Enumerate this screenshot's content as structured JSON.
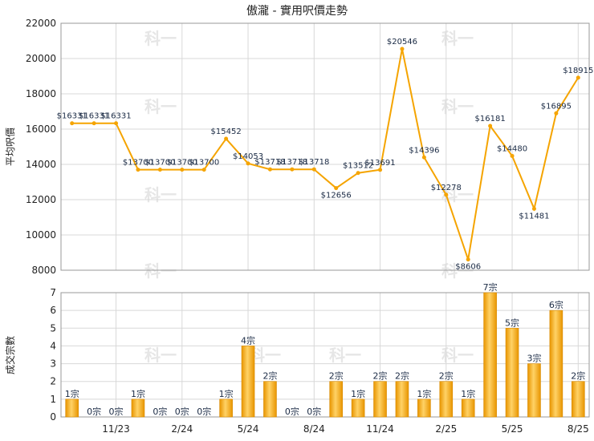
{
  "chart_data": [
    {
      "type": "line",
      "title": "傲瀧 - 實用呎價走勢",
      "ylabel": "平均呎價",
      "ylim": [
        8000,
        22000
      ],
      "yticks": [
        8000,
        10000,
        12000,
        14000,
        16000,
        18000,
        20000,
        22000
      ],
      "grid": true,
      "color": "#f5a400",
      "series": [
        {
          "values": [
            16331,
            16331,
            16331,
            13700,
            13700,
            13700,
            13700,
            15452,
            14053,
            13718,
            13718,
            13718,
            12656,
            13512,
            13691,
            20546,
            14396,
            12278,
            8606,
            16181,
            14480,
            11481,
            16895,
            18915
          ],
          "labels": [
            "$16331",
            "$16331",
            "$16331",
            "$13700",
            "$13700",
            "$13700",
            "$13700",
            "$15452",
            "$14053",
            "$13718",
            "$13718",
            "$13718",
            "$12656",
            "$13512",
            "$13691",
            "$20546",
            "$14396",
            "$12278",
            "$8606",
            "$16181",
            "$14480",
            "$11481",
            "$16895",
            "$18915"
          ]
        }
      ]
    },
    {
      "type": "bar",
      "ylabel": "成交宗數",
      "ylim": [
        0,
        7
      ],
      "yticks": [
        0,
        1,
        2,
        3,
        4,
        5,
        6,
        7
      ],
      "grid": true,
      "color": "#f5a400",
      "values": [
        1,
        0,
        0,
        1,
        0,
        0,
        0,
        1,
        4,
        2,
        0,
        0,
        2,
        1,
        2,
        2,
        1,
        2,
        1,
        7,
        5,
        3,
        6,
        2
      ],
      "labels": [
        "1宗",
        "0宗",
        "0宗",
        "1宗",
        "0宗",
        "0宗",
        "0宗",
        "1宗",
        "4宗",
        "2宗",
        "0宗",
        "0宗",
        "2宗",
        "1宗",
        "2宗",
        "2宗",
        "1宗",
        "2宗",
        "1宗",
        "7宗",
        "5宗",
        "3宗",
        "6宗",
        "2宗"
      ],
      "xticks": [
        {
          "index": 2,
          "label": "11/23"
        },
        {
          "index": 5,
          "label": "2/24"
        },
        {
          "index": 8,
          "label": "5/24"
        },
        {
          "index": 11,
          "label": "8/24"
        },
        {
          "index": 14,
          "label": "11/24"
        },
        {
          "index": 17,
          "label": "2/25"
        },
        {
          "index": 20,
          "label": "5/25"
        },
        {
          "index": 23,
          "label": "8/25"
        }
      ]
    }
  ],
  "watermark": "科一"
}
